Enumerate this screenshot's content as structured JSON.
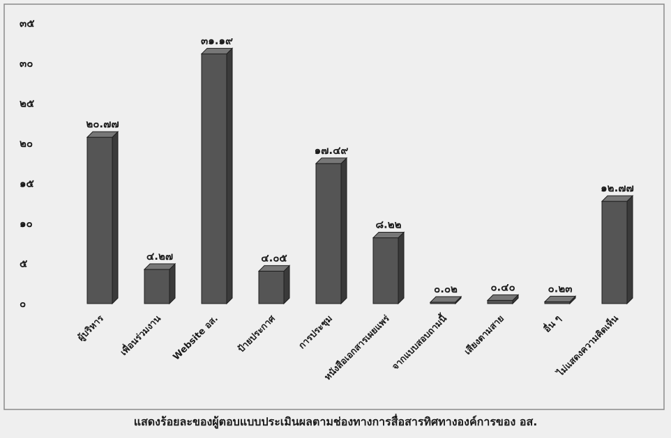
{
  "chart_data": {
    "type": "bar",
    "title": "แสดงร้อยละของผู้ตอบแบบประเมินผลตามช่องทางการสื่อสารทิศทางองค์การของ อส.",
    "categories": [
      "ผู้บริหาร",
      "เพื่อนร่วมงาน",
      "Website อส.",
      "ป้ายประกาศ",
      "การประชุม",
      "หนังสือเอกสารเผยแพร่",
      "จากแบบสอบถามนี้",
      "เสียงตามสาย",
      "อื่น ๆ",
      "ไม่แสดงความคิดเห็น"
    ],
    "values": [
      20.77,
      4.27,
      31.19,
      4.05,
      17.49,
      8.22,
      0.02,
      0.4,
      0.23,
      12.77
    ],
    "value_labels": [
      "๒๐.๗๗",
      "๔.๒๗",
      "๓๑.๑๙",
      "๔.๐๕",
      "๑๗.๔๙",
      "๘.๒๒",
      "๐.๐๒",
      "๐.๔๐",
      "๐.๒๓",
      "๑๒.๗๗"
    ],
    "yticks": [
      0,
      5,
      10,
      15,
      20,
      25,
      30,
      35
    ],
    "ytick_labels": [
      "๐",
      "๕",
      "๑๐",
      "๑๕",
      "๒๐",
      "๒๕",
      "๓๐",
      "๓๕"
    ],
    "ylim": [
      0,
      35
    ],
    "grid": false,
    "legend": "none",
    "bar_color": "#555555"
  }
}
